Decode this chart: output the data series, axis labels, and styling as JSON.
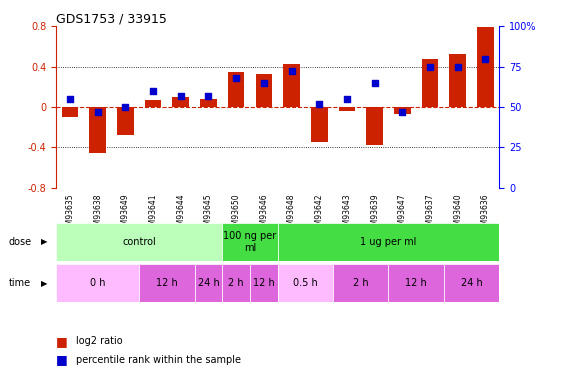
{
  "title": "GDS1753 / 33915",
  "samples": [
    "GSM93635",
    "GSM93638",
    "GSM93649",
    "GSM93641",
    "GSM93644",
    "GSM93645",
    "GSM93650",
    "GSM93646",
    "GSM93648",
    "GSM93642",
    "GSM93643",
    "GSM93639",
    "GSM93647",
    "GSM93637",
    "GSM93640",
    "GSM93636"
  ],
  "log2_ratio": [
    -0.1,
    -0.46,
    -0.28,
    0.07,
    0.1,
    0.08,
    0.35,
    0.33,
    0.43,
    -0.35,
    -0.04,
    -0.38,
    -0.07,
    0.48,
    0.52,
    0.79
  ],
  "percentile": [
    55,
    47,
    50,
    60,
    57,
    57,
    68,
    65,
    72,
    52,
    55,
    65,
    47,
    75,
    75,
    80
  ],
  "dose_groups": [
    {
      "label": "control",
      "start": 0,
      "end": 6,
      "color": "#bbffbb"
    },
    {
      "label": "100 ng per\nml",
      "start": 6,
      "end": 8,
      "color": "#44dd44"
    },
    {
      "label": "1 ug per ml",
      "start": 8,
      "end": 16,
      "color": "#44dd44"
    }
  ],
  "time_groups": [
    {
      "label": "0 h",
      "start": 0,
      "end": 3,
      "color": "#ffbbff"
    },
    {
      "label": "12 h",
      "start": 3,
      "end": 5,
      "color": "#dd66dd"
    },
    {
      "label": "24 h",
      "start": 5,
      "end": 6,
      "color": "#dd66dd"
    },
    {
      "label": "2 h",
      "start": 6,
      "end": 7,
      "color": "#dd66dd"
    },
    {
      "label": "12 h",
      "start": 7,
      "end": 8,
      "color": "#dd66dd"
    },
    {
      "label": "0.5 h",
      "start": 8,
      "end": 10,
      "color": "#ffbbff"
    },
    {
      "label": "2 h",
      "start": 10,
      "end": 12,
      "color": "#dd66dd"
    },
    {
      "label": "12 h",
      "start": 12,
      "end": 14,
      "color": "#dd66dd"
    },
    {
      "label": "24 h",
      "start": 14,
      "end": 16,
      "color": "#dd66dd"
    }
  ],
  "bar_color": "#cc2200",
  "dot_color": "#0000cc",
  "left_ylim": [
    -0.8,
    0.8
  ],
  "right_ylim": [
    0,
    100
  ],
  "left_yticks": [
    -0.8,
    -0.4,
    0.0,
    0.4,
    0.8
  ],
  "right_yticks": [
    0,
    25,
    50,
    75,
    100
  ],
  "left_ytick_labels": [
    "-0.8",
    "-0.4",
    "0",
    "0.4",
    "0.8"
  ],
  "right_ytick_labels": [
    "0",
    "25",
    "50",
    "75",
    "100%"
  ]
}
